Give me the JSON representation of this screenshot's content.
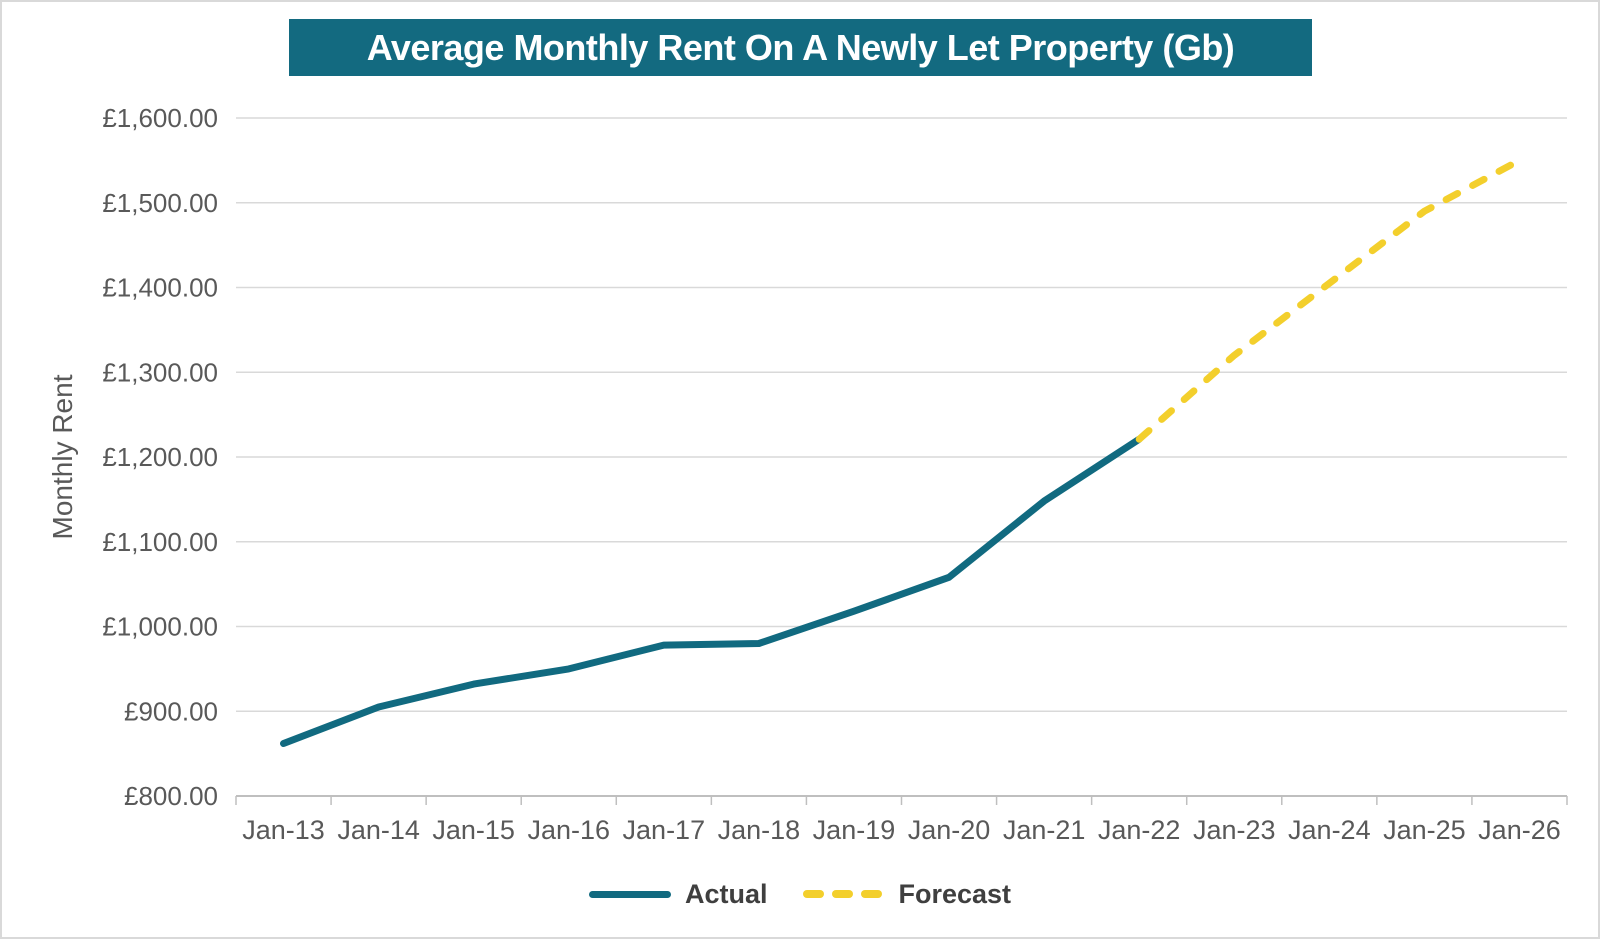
{
  "chart_data": {
    "type": "line",
    "title": "Average Monthly Rent On A Newly Let Property (Gb)",
    "ylabel": "Monthly Rent",
    "xlabel": "",
    "categories": [
      "Jan-13",
      "Jan-14",
      "Jan-15",
      "Jan-16",
      "Jan-17",
      "Jan-18",
      "Jan-19",
      "Jan-20",
      "Jan-21",
      "Jan-22",
      "Jan-23",
      "Jan-24",
      "Jan-25",
      "Jan-26"
    ],
    "series": [
      {
        "name": "Actual",
        "style": "solid",
        "values": [
          862,
          905,
          932,
          950,
          978,
          980,
          1018,
          1058,
          1148,
          1221,
          null,
          null,
          null,
          null
        ]
      },
      {
        "name": "Forecast",
        "style": "dashed",
        "values": [
          null,
          null,
          null,
          null,
          null,
          null,
          null,
          null,
          null,
          1221,
          1320,
          1405,
          1490,
          1550
        ]
      }
    ],
    "ylim": [
      800,
      1600
    ],
    "y_ticks": [
      {
        "value": 800,
        "label": "£800.00"
      },
      {
        "value": 900,
        "label": "£900.00"
      },
      {
        "value": 1000,
        "label": "£1,000.00"
      },
      {
        "value": 1100,
        "label": "£1,100.00"
      },
      {
        "value": 1200,
        "label": "£1,200.00"
      },
      {
        "value": 1300,
        "label": "£1,300.00"
      },
      {
        "value": 1400,
        "label": "£1,400.00"
      },
      {
        "value": 1500,
        "label": "£1,500.00"
      },
      {
        "value": 1600,
        "label": "£1,600.00"
      }
    ],
    "grid": "horizontal",
    "legend_position": "bottom"
  },
  "colors": {
    "title_bar": "#136a80",
    "title_text": "#ffffff",
    "actual_line": "#116a80",
    "forecast_line": "#f3cf2c",
    "axis_text": "#595959",
    "legend_text": "#3f3f3f",
    "gridline": "#d9d9d9",
    "axis_line": "#bfbfbf",
    "background": "#ffffff",
    "border": "#d9d9d9"
  }
}
